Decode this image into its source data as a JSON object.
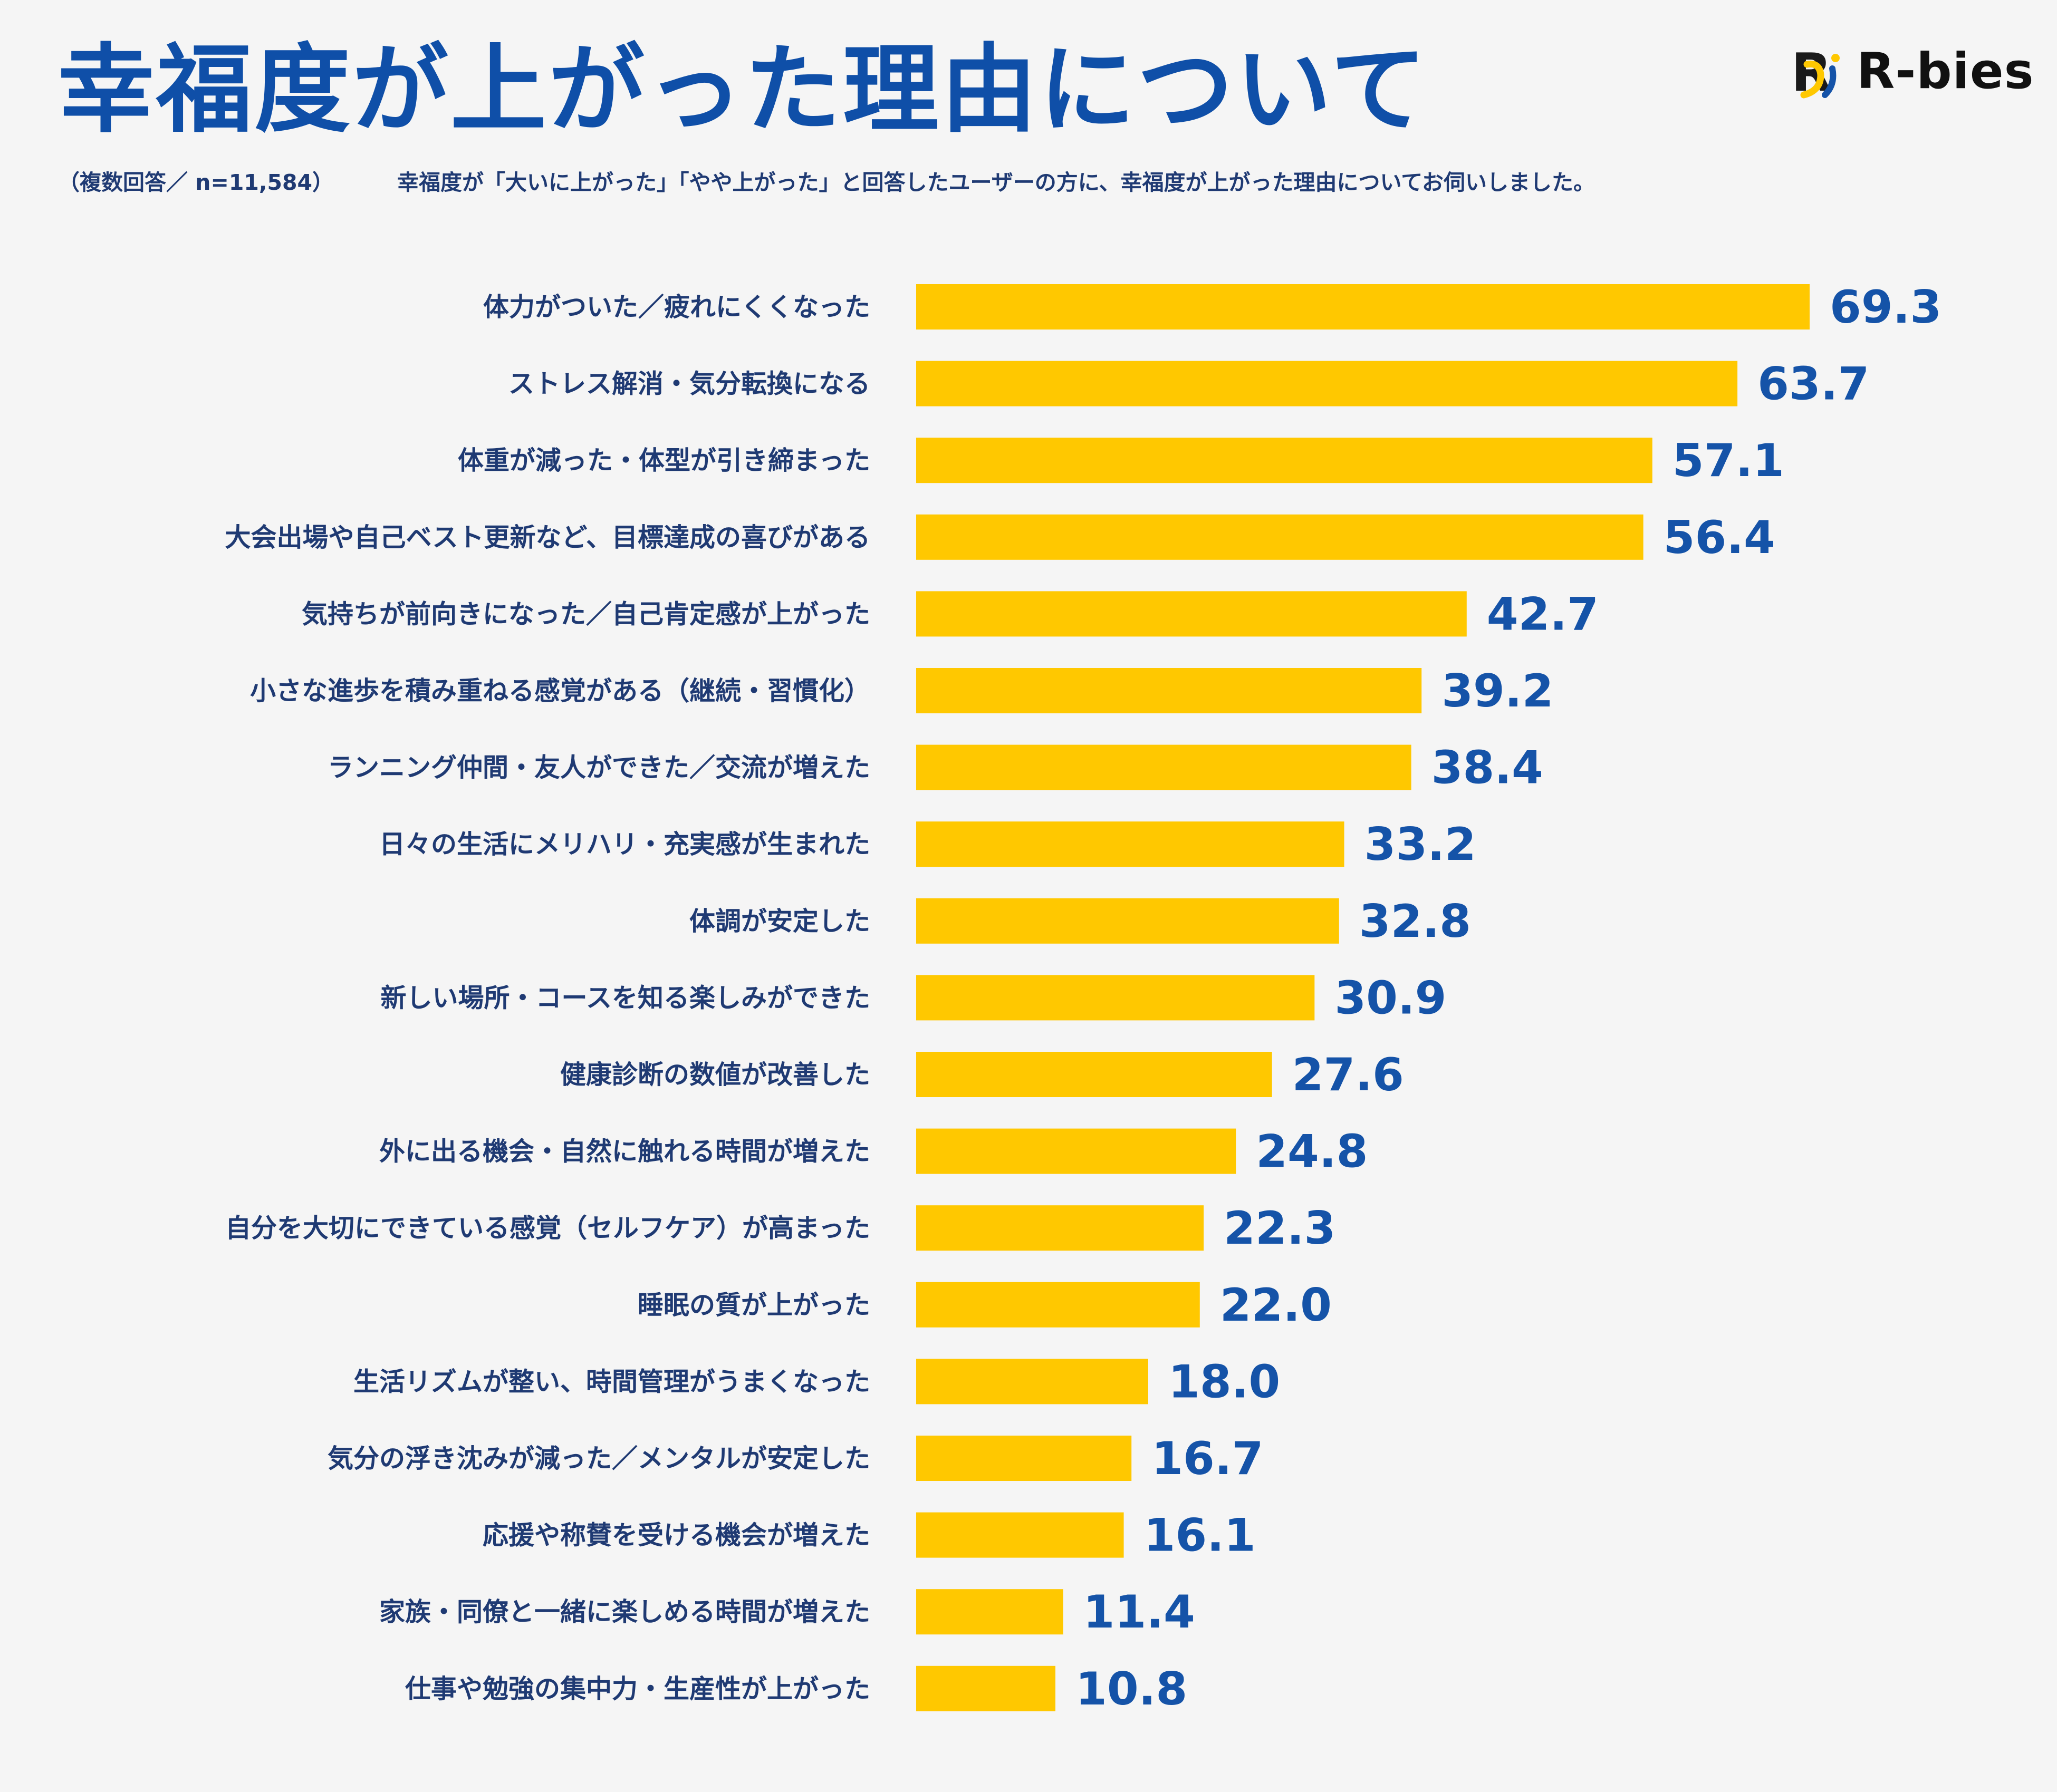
{
  "header": {
    "title": "幸福度が上がった理由について",
    "note": "（複数回答／ n=11,584）",
    "description": "幸福度が「大いに上がった」「やや上がった」と回答したユーザーの方に、幸福度が上がった理由についてお伺いしました。"
  },
  "logo": {
    "text": "R-bies",
    "mark_text": "R",
    "icon": "r-bies-logo-icon"
  },
  "colors": {
    "bar": "#FFC800",
    "title": "#0F4FA8",
    "category_text": "#1F3A73",
    "value_text": "#1553A8",
    "background": "#F5F5F5"
  },
  "chart_data": {
    "type": "bar",
    "orientation": "horizontal",
    "categories": [
      "体力がついた／疲れにくくなった",
      "ストレス解消・気分転換になる",
      "体重が減った・体型が引き締まった",
      "大会出場や自己ベスト更新など、目標達成の喜びがある",
      "気持ちが前向きになった／自己肯定感が上がった",
      "小さな進歩を積み重ねる感覚がある（継続・習慣化）",
      "ランニング仲間・友人ができた／交流が増えた",
      "日々の生活にメリハリ・充実感が生まれた",
      "体調が安定した",
      "新しい場所・コースを知る楽しみができた",
      "健康診断の数値が改善した",
      "外に出る機会・自然に触れる時間が増えた",
      "自分を大切にできている感覚（セルフケア）が高まった",
      "睡眠の質が上がった",
      "生活リズムが整い、時間管理がうまくなった",
      "気分の浮き沈みが減った／メンタルが安定した",
      "応援や称賛を受ける機会が増えた",
      "家族・同僚と一緒に楽しめる時間が増えた",
      "仕事や勉強の集中力・生産性が上がった"
    ],
    "values": [
      69.3,
      63.7,
      57.1,
      56.4,
      42.7,
      39.2,
      38.4,
      33.2,
      32.8,
      30.9,
      27.6,
      24.8,
      22.3,
      22.0,
      18.0,
      16.7,
      16.1,
      11.4,
      10.8
    ],
    "value_labels": [
      "69.3",
      "63.7",
      "57.1",
      "56.4",
      "42.7",
      "39.2",
      "38.4",
      "33.2",
      "32.8",
      "30.9",
      "27.6",
      "24.8",
      "22.3",
      "22.0",
      "18.0",
      "16.7",
      "16.1",
      "11.4",
      "10.8"
    ],
    "title": "",
    "xlabel": "",
    "ylabel": "",
    "xlim": [
      0,
      100
    ],
    "grid": false,
    "legend": "none"
  }
}
